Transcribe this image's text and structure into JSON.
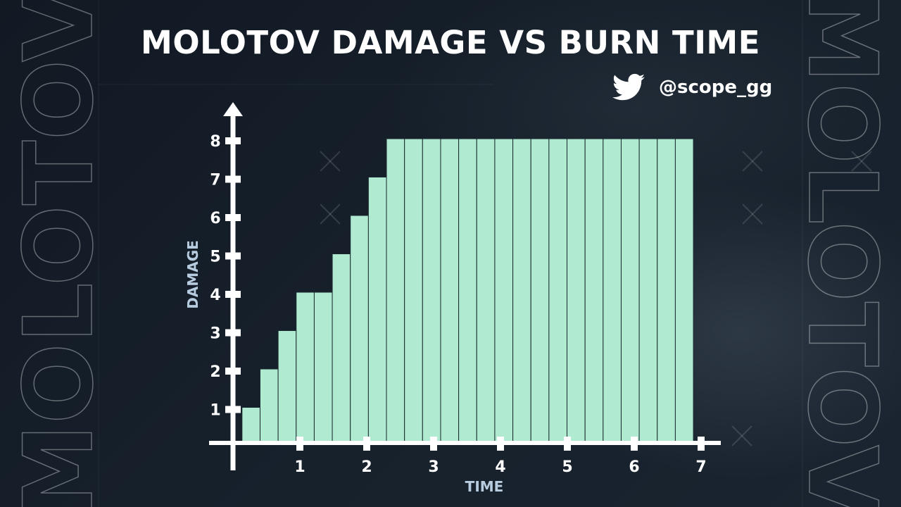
{
  "title": "MOLOTOV DAMAGE VS BURN TIME",
  "social": {
    "handle": "@scope_gg",
    "icon": "twitter-icon"
  },
  "side_text": "MOLOTOV",
  "colors": {
    "bar": "#b0ead1",
    "bar_edge": "#1b2a30",
    "axis": "#ffffff",
    "axis_label": "#b8cce0"
  },
  "chart_data": {
    "type": "bar",
    "xlabel": "TIME",
    "ylabel": "DAMAGE",
    "xlim": [
      0,
      7.3
    ],
    "ylim": [
      0,
      8
    ],
    "xticks": [
      1,
      2,
      3,
      4,
      5,
      6,
      7
    ],
    "yticks": [
      1,
      2,
      3,
      4,
      5,
      6,
      7,
      8
    ],
    "bar_width": 0.27,
    "x": [
      0.27,
      0.54,
      0.81,
      1.08,
      1.35,
      1.62,
      1.89,
      2.16,
      2.43,
      2.7,
      2.97,
      3.24,
      3.51,
      3.78,
      4.05,
      4.32,
      4.59,
      4.86,
      5.13,
      5.4,
      5.67,
      5.94,
      6.21,
      6.48,
      6.75
    ],
    "values": [
      1,
      2,
      3,
      4,
      4,
      5,
      6,
      7,
      8,
      8,
      8,
      8,
      8,
      8,
      8,
      8,
      8,
      8,
      8,
      8,
      8,
      8,
      8,
      8,
      8
    ]
  }
}
